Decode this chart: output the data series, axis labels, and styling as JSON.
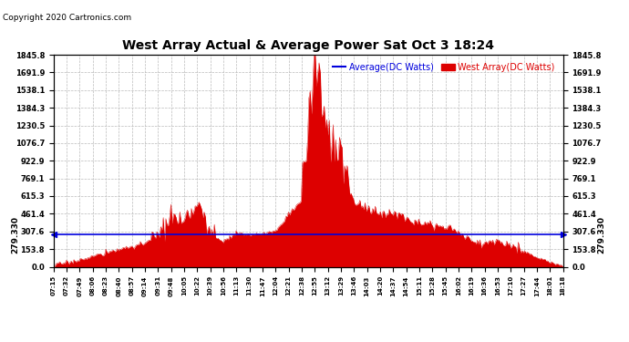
{
  "title": "West Array Actual & Average Power Sat Oct 3 18:24",
  "copyright": "Copyright 2020 Cartronics.com",
  "avg_label": "Average(DC Watts)",
  "west_label": "West Array(DC Watts)",
  "avg_value": 279.33,
  "avg_label_display": "279.330",
  "yticks": [
    0.0,
    153.8,
    307.6,
    461.4,
    615.3,
    769.1,
    922.9,
    1076.7,
    1230.5,
    1384.3,
    1538.1,
    1691.9,
    1845.8
  ],
  "ymax": 1845.8,
  "ymin": 0.0,
  "bg_color": "#ffffff",
  "grid_color": "#bbbbbb",
  "fill_color": "#dd0000",
  "avg_color": "#0000dd",
  "west_color": "#dd0000",
  "title_color": "#000000",
  "copyright_color": "#000000",
  "xtick_labels": [
    "07:15",
    "07:32",
    "07:49",
    "08:06",
    "08:23",
    "08:40",
    "08:57",
    "09:14",
    "09:31",
    "09:48",
    "10:05",
    "10:22",
    "10:39",
    "10:56",
    "11:13",
    "11:30",
    "11:47",
    "12:04",
    "12:21",
    "12:38",
    "12:55",
    "13:12",
    "13:29",
    "13:46",
    "14:03",
    "14:20",
    "14:37",
    "14:54",
    "15:11",
    "15:28",
    "15:45",
    "16:02",
    "16:19",
    "16:36",
    "16:53",
    "17:10",
    "17:27",
    "17:44",
    "18:01",
    "18:18"
  ]
}
